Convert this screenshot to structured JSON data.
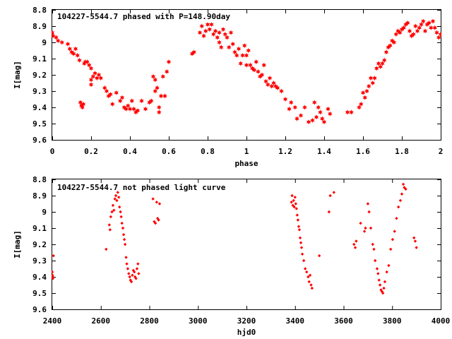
{
  "chart_data": [
    {
      "type": "scatter",
      "title": "104227-5544.7 phased with P=148.90day",
      "xlabel": "phase",
      "ylabel": "I[mag]",
      "xlim": [
        0,
        2
      ],
      "ylim": [
        9.6,
        8.8
      ],
      "y_inverted": true,
      "xticks": [
        0,
        0.2,
        0.4,
        0.6,
        0.8,
        1,
        1.2,
        1.4,
        1.6,
        1.8,
        2
      ],
      "xtick_labels": [
        "0",
        "0.2",
        "0.4",
        "0.6",
        "0.8",
        "1",
        "1.2",
        "1.4",
        "1.6",
        "1.8",
        "2"
      ],
      "yticks": [
        8.8,
        8.9,
        9.0,
        9.1,
        9.2,
        9.3,
        9.4,
        9.5,
        9.6
      ],
      "ytick_labels": [
        "8.8",
        "8.9",
        "9",
        "9.1",
        "9.2",
        "9.3",
        "9.4",
        "9.5",
        "9.6"
      ],
      "marker": "filled-star",
      "marker_color": "#ff0000",
      "grid": false,
      "legend": false,
      "points": [
        [
          0.0,
          8.94
        ],
        [
          0.005,
          8.96
        ],
        [
          0.02,
          8.97
        ],
        [
          0.03,
          8.99
        ],
        [
          0.05,
          9.0
        ],
        [
          0.08,
          9.01
        ],
        [
          0.09,
          9.04
        ],
        [
          0.1,
          9.06
        ],
        [
          0.11,
          9.07
        ],
        [
          0.12,
          9.04
        ],
        [
          0.13,
          9.08
        ],
        [
          0.14,
          9.11
        ],
        [
          0.145,
          9.37
        ],
        [
          0.15,
          9.39
        ],
        [
          0.155,
          9.4
        ],
        [
          0.16,
          9.38
        ],
        [
          0.165,
          9.13
        ],
        [
          0.17,
          9.12
        ],
        [
          0.18,
          9.12
        ],
        [
          0.19,
          9.14
        ],
        [
          0.2,
          9.16
        ],
        [
          0.2,
          9.23
        ],
        [
          0.2,
          9.26
        ],
        [
          0.21,
          9.21
        ],
        [
          0.22,
          9.19
        ],
        [
          0.23,
          9.22
        ],
        [
          0.24,
          9.2
        ],
        [
          0.25,
          9.22
        ],
        [
          0.27,
          9.28
        ],
        [
          0.28,
          9.3
        ],
        [
          0.29,
          9.33
        ],
        [
          0.3,
          9.32
        ],
        [
          0.31,
          9.38
        ],
        [
          0.33,
          9.31
        ],
        [
          0.35,
          9.36
        ],
        [
          0.36,
          9.34
        ],
        [
          0.37,
          9.4
        ],
        [
          0.38,
          9.41
        ],
        [
          0.39,
          9.39
        ],
        [
          0.4,
          9.41
        ],
        [
          0.41,
          9.36
        ],
        [
          0.42,
          9.41
        ],
        [
          0.43,
          9.43
        ],
        [
          0.44,
          9.42
        ],
        [
          0.46,
          9.36
        ],
        [
          0.48,
          9.41
        ],
        [
          0.5,
          9.37
        ],
        [
          0.51,
          9.36
        ],
        [
          0.52,
          9.21
        ],
        [
          0.53,
          9.23
        ],
        [
          0.53,
          9.3
        ],
        [
          0.54,
          9.28
        ],
        [
          0.55,
          9.4
        ],
        [
          0.55,
          9.43
        ],
        [
          0.56,
          9.33
        ],
        [
          0.57,
          9.21
        ],
        [
          0.58,
          9.33
        ],
        [
          0.59,
          9.18
        ],
        [
          0.6,
          9.12
        ],
        [
          0.72,
          9.07
        ],
        [
          0.73,
          9.06
        ],
        [
          0.76,
          8.94
        ],
        [
          0.77,
          8.9
        ],
        [
          0.78,
          8.96
        ],
        [
          0.79,
          8.93
        ],
        [
          0.8,
          8.89
        ],
        [
          0.81,
          8.92
        ],
        [
          0.82,
          8.89
        ],
        [
          0.83,
          8.95
        ],
        [
          0.84,
          8.93
        ],
        [
          0.85,
          8.97
        ],
        [
          0.86,
          9.0
        ],
        [
          0.86,
          8.94
        ],
        [
          0.87,
          9.03
        ],
        [
          0.88,
          8.92
        ],
        [
          0.89,
          8.95
        ],
        [
          0.9,
          8.97
        ],
        [
          0.91,
          9.03
        ],
        [
          0.92,
          8.94
        ],
        [
          0.93,
          9.01
        ],
        [
          0.94,
          9.06
        ],
        [
          0.95,
          9.08
        ],
        [
          0.96,
          9.04
        ],
        [
          0.97,
          9.13
        ],
        [
          0.98,
          9.08
        ],
        [
          0.99,
          9.02
        ],
        [
          1.0,
          9.08
        ],
        [
          1.0,
          9.14
        ],
        [
          1.01,
          9.05
        ],
        [
          1.02,
          9.14
        ],
        [
          1.03,
          9.16
        ],
        [
          1.04,
          9.17
        ],
        [
          1.05,
          9.12
        ],
        [
          1.06,
          9.18
        ],
        [
          1.07,
          9.21
        ],
        [
          1.08,
          9.2
        ],
        [
          1.09,
          9.14
        ],
        [
          1.1,
          9.24
        ],
        [
          1.11,
          9.26
        ],
        [
          1.12,
          9.22
        ],
        [
          1.13,
          9.27
        ],
        [
          1.14,
          9.25
        ],
        [
          1.15,
          9.27
        ],
        [
          1.16,
          9.28
        ],
        [
          1.18,
          9.3
        ],
        [
          1.2,
          9.35
        ],
        [
          1.22,
          9.41
        ],
        [
          1.23,
          9.37
        ],
        [
          1.25,
          9.4
        ],
        [
          1.26,
          9.47
        ],
        [
          1.28,
          9.45
        ],
        [
          1.3,
          9.4
        ],
        [
          1.32,
          9.49
        ],
        [
          1.34,
          9.48
        ],
        [
          1.35,
          9.37
        ],
        [
          1.36,
          9.46
        ],
        [
          1.37,
          9.4
        ],
        [
          1.38,
          9.43
        ],
        [
          1.39,
          9.47
        ],
        [
          1.4,
          9.49
        ],
        [
          1.42,
          9.41
        ],
        [
          1.43,
          9.44
        ],
        [
          1.52,
          9.43
        ],
        [
          1.54,
          9.43
        ],
        [
          1.58,
          9.4
        ],
        [
          1.59,
          9.38
        ],
        [
          1.6,
          9.31
        ],
        [
          1.61,
          9.34
        ],
        [
          1.62,
          9.3
        ],
        [
          1.63,
          9.27
        ],
        [
          1.64,
          9.22
        ],
        [
          1.65,
          9.25
        ],
        [
          1.66,
          9.22
        ],
        [
          1.67,
          9.16
        ],
        [
          1.68,
          9.13
        ],
        [
          1.69,
          9.15
        ],
        [
          1.7,
          9.13
        ],
        [
          1.71,
          9.11
        ],
        [
          1.72,
          9.06
        ],
        [
          1.73,
          9.03
        ],
        [
          1.74,
          9.02
        ],
        [
          1.75,
          8.99
        ],
        [
          1.76,
          9.0
        ],
        [
          1.77,
          8.95
        ],
        [
          1.78,
          8.93
        ],
        [
          1.79,
          8.94
        ],
        [
          1.8,
          8.92
        ],
        [
          1.81,
          8.91
        ],
        [
          1.82,
          8.89
        ],
        [
          1.83,
          8.88
        ],
        [
          1.84,
          8.93
        ],
        [
          1.85,
          8.96
        ],
        [
          1.86,
          8.95
        ],
        [
          1.87,
          8.9
        ],
        [
          1.88,
          8.93
        ],
        [
          1.89,
          8.91
        ],
        [
          1.9,
          8.89
        ],
        [
          1.91,
          8.87
        ],
        [
          1.92,
          8.93
        ],
        [
          1.93,
          8.89
        ],
        [
          1.94,
          8.88
        ],
        [
          1.95,
          8.91
        ],
        [
          1.96,
          8.87
        ],
        [
          1.97,
          8.91
        ],
        [
          1.98,
          8.94
        ],
        [
          1.99,
          8.97
        ],
        [
          2.0,
          8.95
        ]
      ]
    },
    {
      "type": "scatter",
      "title": "104227-5544.7 not phased light curve",
      "xlabel": "hjd0",
      "ylabel": "I[mag]",
      "xlim": [
        2400,
        4000
      ],
      "ylim": [
        9.6,
        8.8
      ],
      "y_inverted": true,
      "xticks": [
        2400,
        2600,
        2800,
        3000,
        3200,
        3400,
        3600,
        3800,
        4000
      ],
      "xtick_labels": [
        "2400",
        "2600",
        "2800",
        "3000",
        "3200",
        "3400",
        "3600",
        "3800",
        "4000"
      ],
      "yticks": [
        8.8,
        8.9,
        9.0,
        9.1,
        9.2,
        9.3,
        9.4,
        9.5,
        9.6
      ],
      "ytick_labels": [
        "8.8",
        "8.9",
        "9",
        "9.1",
        "9.2",
        "9.3",
        "9.4",
        "9.5",
        "9.6"
      ],
      "marker": "filled-diamond",
      "marker_color": "#ff0000",
      "grid": false,
      "legend": false,
      "points": [
        [
          2400,
          9.37
        ],
        [
          2401,
          9.39
        ],
        [
          2402,
          9.4
        ],
        [
          2403,
          9.41
        ],
        [
          2405,
          9.27
        ],
        [
          2622,
          9.23
        ],
        [
          2635,
          9.08
        ],
        [
          2638,
          9.11
        ],
        [
          2641,
          9.03
        ],
        [
          2646,
          9.0
        ],
        [
          2650,
          8.96
        ],
        [
          2654,
          8.99
        ],
        [
          2658,
          8.92
        ],
        [
          2662,
          8.9
        ],
        [
          2666,
          8.93
        ],
        [
          2670,
          8.88
        ],
        [
          2674,
          8.91
        ],
        [
          2677,
          8.97
        ],
        [
          2681,
          9.0
        ],
        [
          2684,
          9.03
        ],
        [
          2687,
          9.07
        ],
        [
          2691,
          9.1
        ],
        [
          2694,
          9.14
        ],
        [
          2697,
          9.17
        ],
        [
          2700,
          9.2
        ],
        [
          2704,
          9.28
        ],
        [
          2707,
          9.32
        ],
        [
          2711,
          9.35
        ],
        [
          2715,
          9.38
        ],
        [
          2719,
          9.4
        ],
        [
          2722,
          9.42
        ],
        [
          2726,
          9.43
        ],
        [
          2730,
          9.39
        ],
        [
          2734,
          9.36
        ],
        [
          2738,
          9.37
        ],
        [
          2741,
          9.4
        ],
        [
          2745,
          9.41
        ],
        [
          2749,
          9.35
        ],
        [
          2753,
          9.32
        ],
        [
          2756,
          9.38
        ],
        [
          2815,
          8.92
        ],
        [
          2820,
          9.06
        ],
        [
          2825,
          9.07
        ],
        [
          2830,
          8.94
        ],
        [
          2834,
          9.04
        ],
        [
          2838,
          9.05
        ],
        [
          2842,
          8.95
        ],
        [
          3385,
          8.94
        ],
        [
          3388,
          8.9
        ],
        [
          3391,
          8.96
        ],
        [
          3394,
          8.93
        ],
        [
          3397,
          8.97
        ],
        [
          3400,
          8.91
        ],
        [
          3403,
          8.95
        ],
        [
          3406,
          8.98
        ],
        [
          3409,
          9.02
        ],
        [
          3412,
          9.05
        ],
        [
          3415,
          9.09
        ],
        [
          3418,
          9.11
        ],
        [
          3421,
          9.16
        ],
        [
          3424,
          9.19
        ],
        [
          3427,
          9.22
        ],
        [
          3430,
          9.26
        ],
        [
          3436,
          9.3
        ],
        [
          3442,
          9.35
        ],
        [
          3448,
          9.37
        ],
        [
          3454,
          9.4
        ],
        [
          3458,
          9.43
        ],
        [
          3462,
          9.39
        ],
        [
          3466,
          9.45
        ],
        [
          3470,
          9.47
        ],
        [
          3500,
          9.27
        ],
        [
          3540,
          9.0
        ],
        [
          3545,
          8.9
        ],
        [
          3560,
          8.88
        ],
        [
          3643,
          9.2
        ],
        [
          3648,
          9.22
        ],
        [
          3652,
          9.18
        ],
        [
          3670,
          9.07
        ],
        [
          3686,
          9.12
        ],
        [
          3690,
          9.1
        ],
        [
          3700,
          8.95
        ],
        [
          3705,
          9.0
        ],
        [
          3712,
          9.1
        ],
        [
          3720,
          9.2
        ],
        [
          3725,
          9.23
        ],
        [
          3730,
          9.3
        ],
        [
          3738,
          9.35
        ],
        [
          3742,
          9.38
        ],
        [
          3746,
          9.42
        ],
        [
          3750,
          9.45
        ],
        [
          3754,
          9.48
        ],
        [
          3758,
          9.49
        ],
        [
          3762,
          9.5
        ],
        [
          3766,
          9.47
        ],
        [
          3770,
          9.43
        ],
        [
          3778,
          9.37
        ],
        [
          3786,
          9.33
        ],
        [
          3794,
          9.23
        ],
        [
          3802,
          9.17
        ],
        [
          3810,
          9.12
        ],
        [
          3818,
          9.04
        ],
        [
          3826,
          8.97
        ],
        [
          3834,
          8.93
        ],
        [
          3840,
          8.89
        ],
        [
          3846,
          8.83
        ],
        [
          3850,
          8.85
        ],
        [
          3856,
          8.86
        ],
        [
          3890,
          9.16
        ],
        [
          3895,
          9.18
        ],
        [
          3900,
          9.22
        ]
      ]
    }
  ]
}
